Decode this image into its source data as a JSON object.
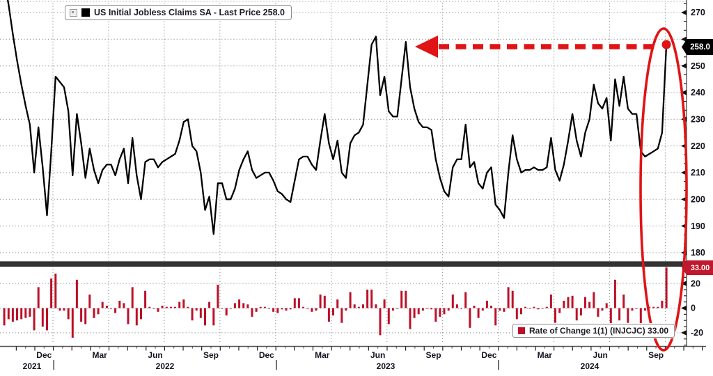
{
  "legends": {
    "top": "US Initial Jobless Claims SA - Last Price 258.0",
    "bottom": "Rate of Change 1(1) (INJCJC) 33.00"
  },
  "badges": {
    "last_price": "258.0",
    "last_roc": "33.00"
  },
  "colors": {
    "line": "#000000",
    "bars": "#bb1128",
    "annotation_red": "#e01414",
    "price_badge_bg": "#000000",
    "roc_badge_bg": "#c0182c",
    "separator": "#333333",
    "grid_dots": "#8f8f8f",
    "axis_line": "#555555",
    "axis_text": "#13131f"
  },
  "chart_data": [
    {
      "type": "line",
      "name": "US Initial Jobless Claims SA",
      "last_price": 258.0,
      "frequency": "weekly",
      "y_axis": {
        "labeled_ticks": [
          270,
          250,
          240,
          230,
          220,
          210,
          200,
          190,
          180
        ],
        "tick_hidden_under_badge": 260,
        "gridlines": [
          270,
          260,
          250,
          240,
          230,
          220,
          210,
          200,
          190,
          180
        ]
      },
      "x_axis": {
        "month_tick_labels": [
          "Dec",
          "Mar",
          "Jun",
          "Sep",
          "Dec",
          "Mar",
          "Jun",
          "Sep",
          "Dec",
          "Mar",
          "Jun",
          "Sep"
        ],
        "year_labels": [
          "2021",
          "2022",
          "2023",
          "2024"
        ]
      },
      "values": [
        296,
        282,
        273,
        262,
        252,
        243,
        235,
        228,
        210,
        227,
        212,
        194,
        218,
        246,
        244,
        242,
        233,
        209,
        232,
        221,
        208,
        219,
        211,
        206,
        211,
        213,
        213,
        209,
        215,
        219,
        206,
        223,
        209,
        200,
        214,
        215,
        215,
        212,
        214,
        215,
        216,
        217,
        222,
        229,
        230,
        220,
        218,
        210,
        196,
        201,
        187,
        206,
        206,
        200,
        200,
        204,
        211,
        215,
        218,
        211,
        208,
        209,
        210,
        210,
        207,
        203,
        202,
        200,
        199,
        207,
        215,
        216,
        216,
        213,
        211,
        222,
        232,
        221,
        215,
        222,
        210,
        208,
        221,
        224,
        225,
        228,
        243,
        258,
        261,
        239,
        246,
        233,
        231,
        231,
        245,
        259,
        242,
        234,
        229,
        227,
        227,
        226,
        215,
        208,
        203,
        201,
        212,
        215,
        215,
        228,
        212,
        214,
        206,
        204,
        210,
        212,
        198,
        196,
        193,
        210,
        224,
        215,
        210,
        211,
        211,
        212,
        211,
        211,
        212,
        223,
        211,
        207,
        213,
        222,
        232,
        222,
        216,
        225,
        230,
        243,
        236,
        234,
        238,
        222,
        245,
        235,
        246,
        234,
        232,
        232,
        218,
        216,
        217,
        218,
        219,
        225,
        258
      ]
    },
    {
      "type": "bar",
      "name": "Rate of Change 1(1) (INJCJC)",
      "last_value": 33.0,
      "y_axis": {
        "labeled_ticks": [
          20,
          0,
          -20
        ]
      },
      "derivation": "week-over-week difference of the line series values"
    }
  ],
  "annotations": {
    "dashed_arrow": "red dashed arrow from the last-price dot pointing left to the mid-2023 peak",
    "ellipse": "red ellipse circling the final spike in both panels",
    "endpoint_dot": "red dot on the last data point"
  }
}
